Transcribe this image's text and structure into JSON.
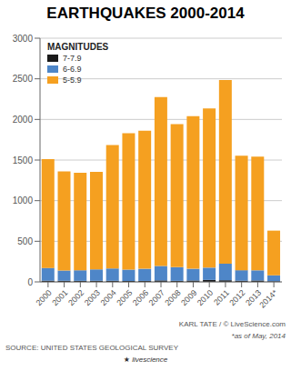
{
  "chart_data": {
    "type": "bar",
    "stacked": true,
    "title": "EARTHQUAKES 2000-2014",
    "categories": [
      "2000",
      "2001",
      "2002",
      "2003",
      "2004",
      "2005",
      "2006",
      "2007",
      "2008",
      "2009",
      "2010",
      "2011",
      "2012",
      "2013",
      "2014*"
    ],
    "series": [
      {
        "name": "7-7.9",
        "color": "#1a1a1a",
        "values": [
          15,
          14,
          13,
          14,
          15,
          11,
          12,
          18,
          13,
          17,
          24,
          20,
          15,
          17,
          8
        ]
      },
      {
        "name": "6-6.9",
        "color": "#4e86c8",
        "values": [
          157,
          126,
          130,
          140,
          150,
          140,
          149,
          178,
          168,
          144,
          151,
          204,
          129,
          125,
          73
        ]
      },
      {
        "name": "5-5.9",
        "color": "#f5a020",
        "values": [
          1340,
          1220,
          1200,
          1200,
          1520,
          1680,
          1700,
          2080,
          1760,
          1880,
          1960,
          2260,
          1410,
          1400,
          550
        ]
      }
    ],
    "ylim": [
      0,
      3000
    ],
    "yticks": [
      0,
      500,
      1000,
      1500,
      2000,
      2500,
      3000
    ],
    "grid": true,
    "legend": "upper left",
    "legend_title": "MAGNITUDES",
    "annotations": [
      "KARL TATE / © LiveScience.com",
      "*as of May, 2014",
      "SOURCE: UNITED STATES GEOLOGICAL SURVEY",
      "★ livescience"
    ]
  }
}
